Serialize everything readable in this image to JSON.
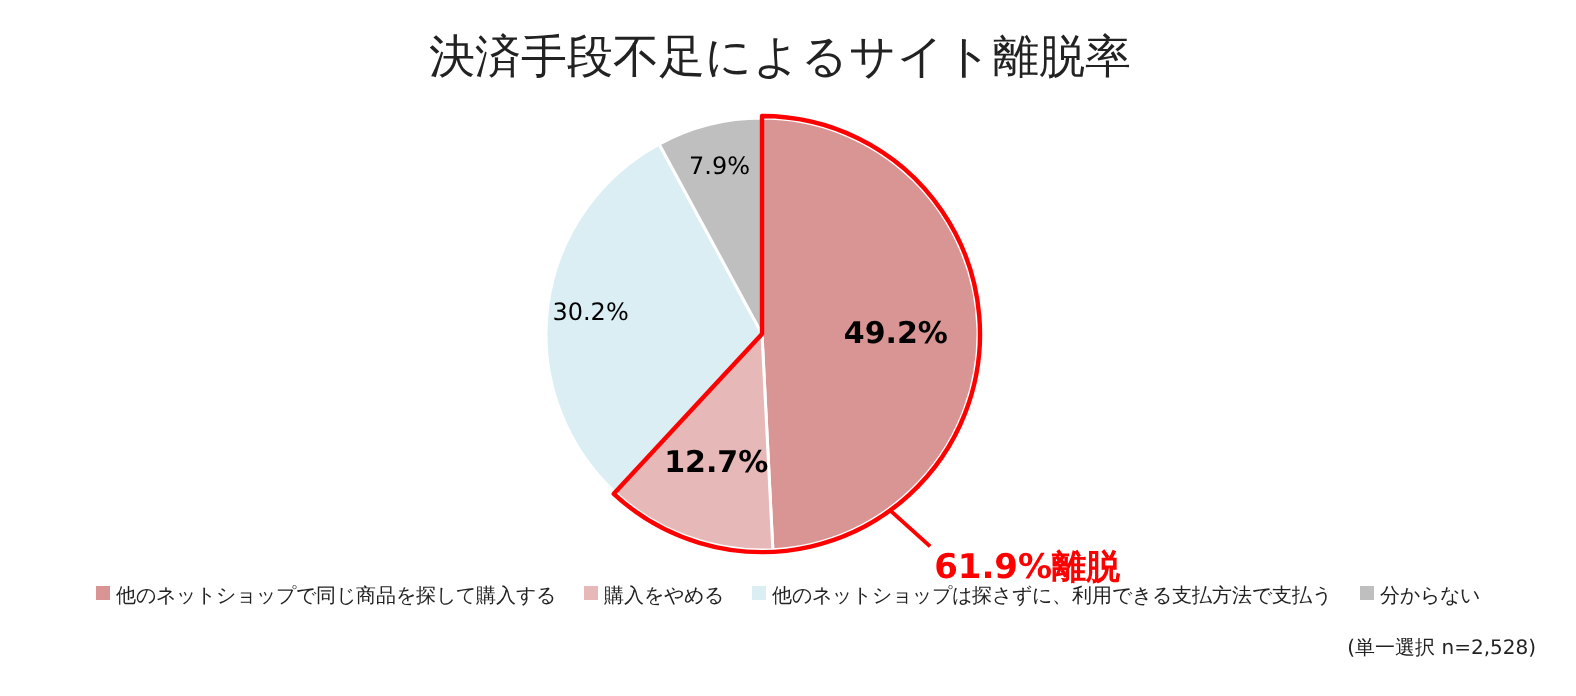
{
  "chart_data": {
    "type": "pie",
    "title": "決済手段不足によるサイト離脱率",
    "categories": [
      "他のネットショップで同じ商品を探して購入する",
      "購入をやめる",
      "他のネットショップは探さずに、利用できる支払方法で支払う",
      "分からない"
    ],
    "values": [
      49.2,
      12.7,
      30.2,
      7.9
    ],
    "colors": [
      "#d99594",
      "#e6b8b7",
      "#dbeef4",
      "#bfbfbf"
    ],
    "value_labels": [
      "49.2%",
      "12.7%",
      "30.2%",
      "7.9%"
    ],
    "legend": "bottom",
    "annotations": [
      "61.9%離脱",
      "(単一選択 n=2,528)"
    ]
  }
}
